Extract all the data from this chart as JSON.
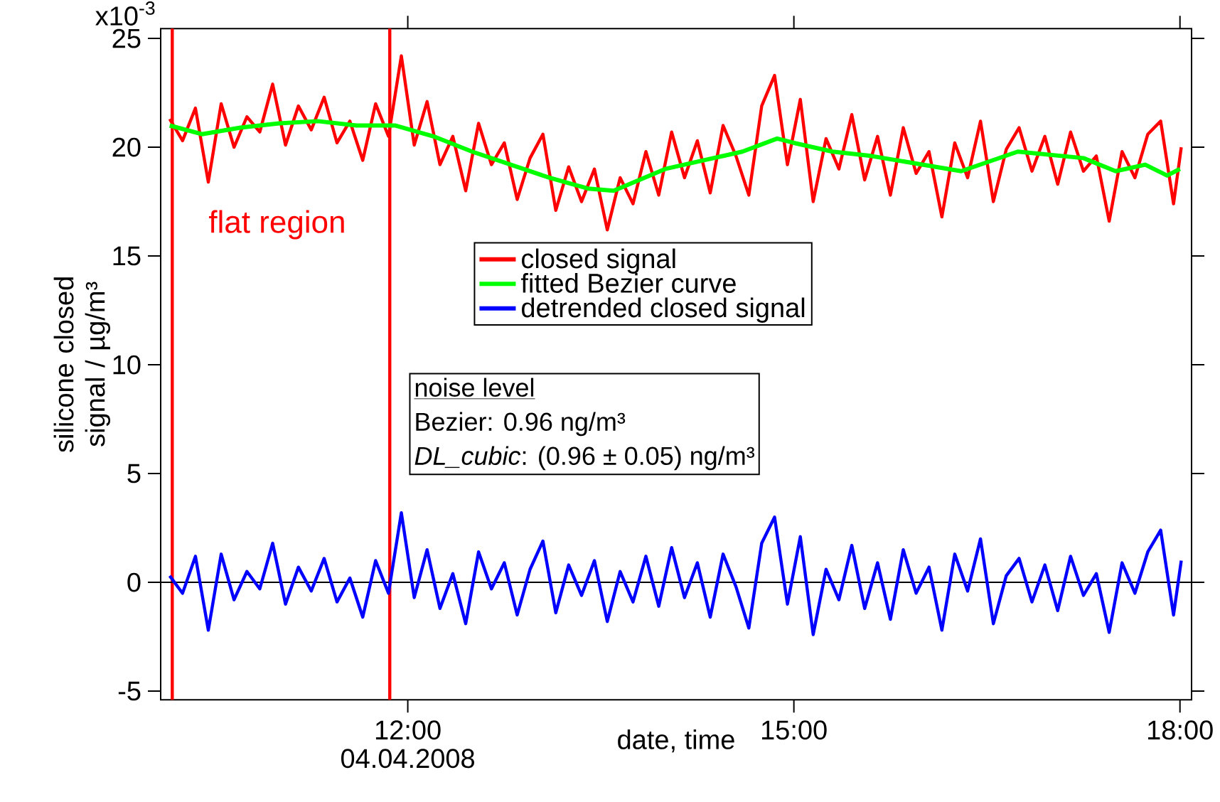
{
  "chart_data": {
    "type": "line",
    "xlabel": "date, time",
    "ylabel": "silicone closed signal / µg/m³",
    "xlim": [
      10.08,
      18.09
    ],
    "ylim": [
      -5.4,
      25.45
    ],
    "xticks": [
      {
        "value": 12,
        "label": "12:00"
      },
      {
        "value": 15,
        "label": "15:00"
      },
      {
        "value": 18,
        "label": "18:00"
      }
    ],
    "yticks": [
      -5,
      0,
      5,
      10,
      15,
      20,
      25
    ],
    "x": [
      10.15,
      10.25,
      10.35,
      10.45,
      10.55,
      10.65,
      10.75,
      10.85,
      10.95,
      11.05,
      11.15,
      11.25,
      11.35,
      11.45,
      11.55,
      11.65,
      11.75,
      11.85,
      11.95,
      12.05,
      12.15,
      12.25,
      12.35,
      12.45,
      12.55,
      12.65,
      12.75,
      12.85,
      12.95,
      13.05,
      13.15,
      13.25,
      13.35,
      13.45,
      13.55,
      13.65,
      13.75,
      13.85,
      13.95,
      14.05,
      14.15,
      14.25,
      14.35,
      14.45,
      14.55,
      14.65,
      14.75,
      14.85,
      14.95,
      15.05,
      15.15,
      15.25,
      15.35,
      15.45,
      15.55,
      15.65,
      15.75,
      15.85,
      15.95,
      16.05,
      16.15,
      16.25,
      16.35,
      16.45,
      16.55,
      16.65,
      16.75,
      16.85,
      16.95,
      17.05,
      17.15,
      17.25,
      17.35,
      17.45,
      17.55,
      17.65,
      17.75,
      17.85,
      17.95,
      18.01
    ],
    "series": [
      {
        "name": "closed signal",
        "color": "#ff0000",
        "values": [
          21.3,
          20.3,
          21.8,
          18.4,
          22.0,
          20.0,
          21.4,
          20.7,
          22.9,
          20.1,
          21.9,
          20.8,
          22.3,
          20.2,
          21.2,
          19.4,
          22.0,
          20.5,
          24.2,
          20.1,
          22.1,
          19.2,
          20.5,
          18.0,
          21.1,
          19.2,
          20.2,
          17.6,
          19.5,
          20.6,
          17.1,
          19.1,
          17.5,
          19.0,
          16.2,
          18.6,
          17.4,
          19.8,
          17.8,
          20.7,
          18.6,
          20.3,
          17.9,
          21.0,
          19.6,
          17.8,
          21.9,
          23.3,
          19.2,
          22.2,
          17.5,
          20.4,
          19.0,
          21.5,
          18.5,
          20.5,
          17.8,
          20.9,
          18.8,
          19.8,
          16.8,
          20.2,
          18.6,
          21.2,
          17.5,
          19.9,
          20.9,
          18.9,
          20.5,
          18.3,
          20.7,
          18.9,
          19.6,
          16.6,
          19.8,
          18.6,
          20.6,
          21.2,
          17.4,
          20.0
        ]
      },
      {
        "name": "fitted Bezier curve",
        "color": "#00ff00",
        "x": [
          10.15,
          10.4,
          10.7,
          11.0,
          11.3,
          11.6,
          11.9,
          12.2,
          12.5,
          12.8,
          13.1,
          13.4,
          13.6,
          13.8,
          14.0,
          14.3,
          14.6,
          14.87,
          15.0,
          15.3,
          15.6,
          15.9,
          16.3,
          16.74,
          17.25,
          17.5,
          17.73,
          17.9,
          18.0
        ],
        "values": [
          21.0,
          20.6,
          20.9,
          21.1,
          21.2,
          21.0,
          21.0,
          20.5,
          19.8,
          19.2,
          18.6,
          18.1,
          18.0,
          18.5,
          19.0,
          19.4,
          19.8,
          20.4,
          20.2,
          19.8,
          19.6,
          19.3,
          18.9,
          19.8,
          19.5,
          18.9,
          19.2,
          18.7,
          19.0
        ]
      },
      {
        "name": "detrended closed signal",
        "color": "#0000ff",
        "values": [
          0.3,
          -0.5,
          1.2,
          -2.2,
          1.3,
          -0.8,
          0.5,
          -0.3,
          1.8,
          -1.0,
          0.7,
          -0.4,
          1.1,
          -0.9,
          0.2,
          -1.6,
          1.0,
          -0.5,
          3.2,
          -0.7,
          1.5,
          -1.2,
          0.4,
          -1.9,
          1.4,
          -0.3,
          0.9,
          -1.5,
          0.6,
          1.9,
          -1.4,
          0.8,
          -0.6,
          1.0,
          -1.8,
          0.5,
          -0.9,
          1.2,
          -1.1,
          1.6,
          -0.7,
          0.9,
          -1.6,
          1.3,
          -0.2,
          -2.1,
          1.8,
          3.0,
          -1.0,
          2.1,
          -2.4,
          0.6,
          -0.8,
          1.7,
          -1.2,
          0.9,
          -1.7,
          1.5,
          -0.5,
          0.7,
          -2.2,
          1.3,
          -0.4,
          2.0,
          -1.9,
          0.3,
          1.1,
          -0.9,
          0.8,
          -1.3,
          1.2,
          -0.6,
          0.4,
          -2.3,
          0.9,
          -0.5,
          1.4,
          2.4,
          -1.5,
          1.0
        ]
      }
    ],
    "ref_lines": [
      {
        "axis": "x",
        "value": 10.17,
        "color": "#ff0000",
        "label": "flat region"
      },
      {
        "axis": "x",
        "value": 11.86,
        "color": "#ff0000"
      },
      {
        "axis": "y",
        "value": 0,
        "color": "#000000"
      }
    ],
    "annotations": [
      "04.04.2008",
      "noise level",
      "Bezier: 0.96 ng/m³",
      "*DL_cubic*: (0.96 ± 0.05) ng/m³",
      "x10$^{-3}$"
    ],
    "legend": "top",
    "grid": false,
    "line_style": "solid"
  }
}
